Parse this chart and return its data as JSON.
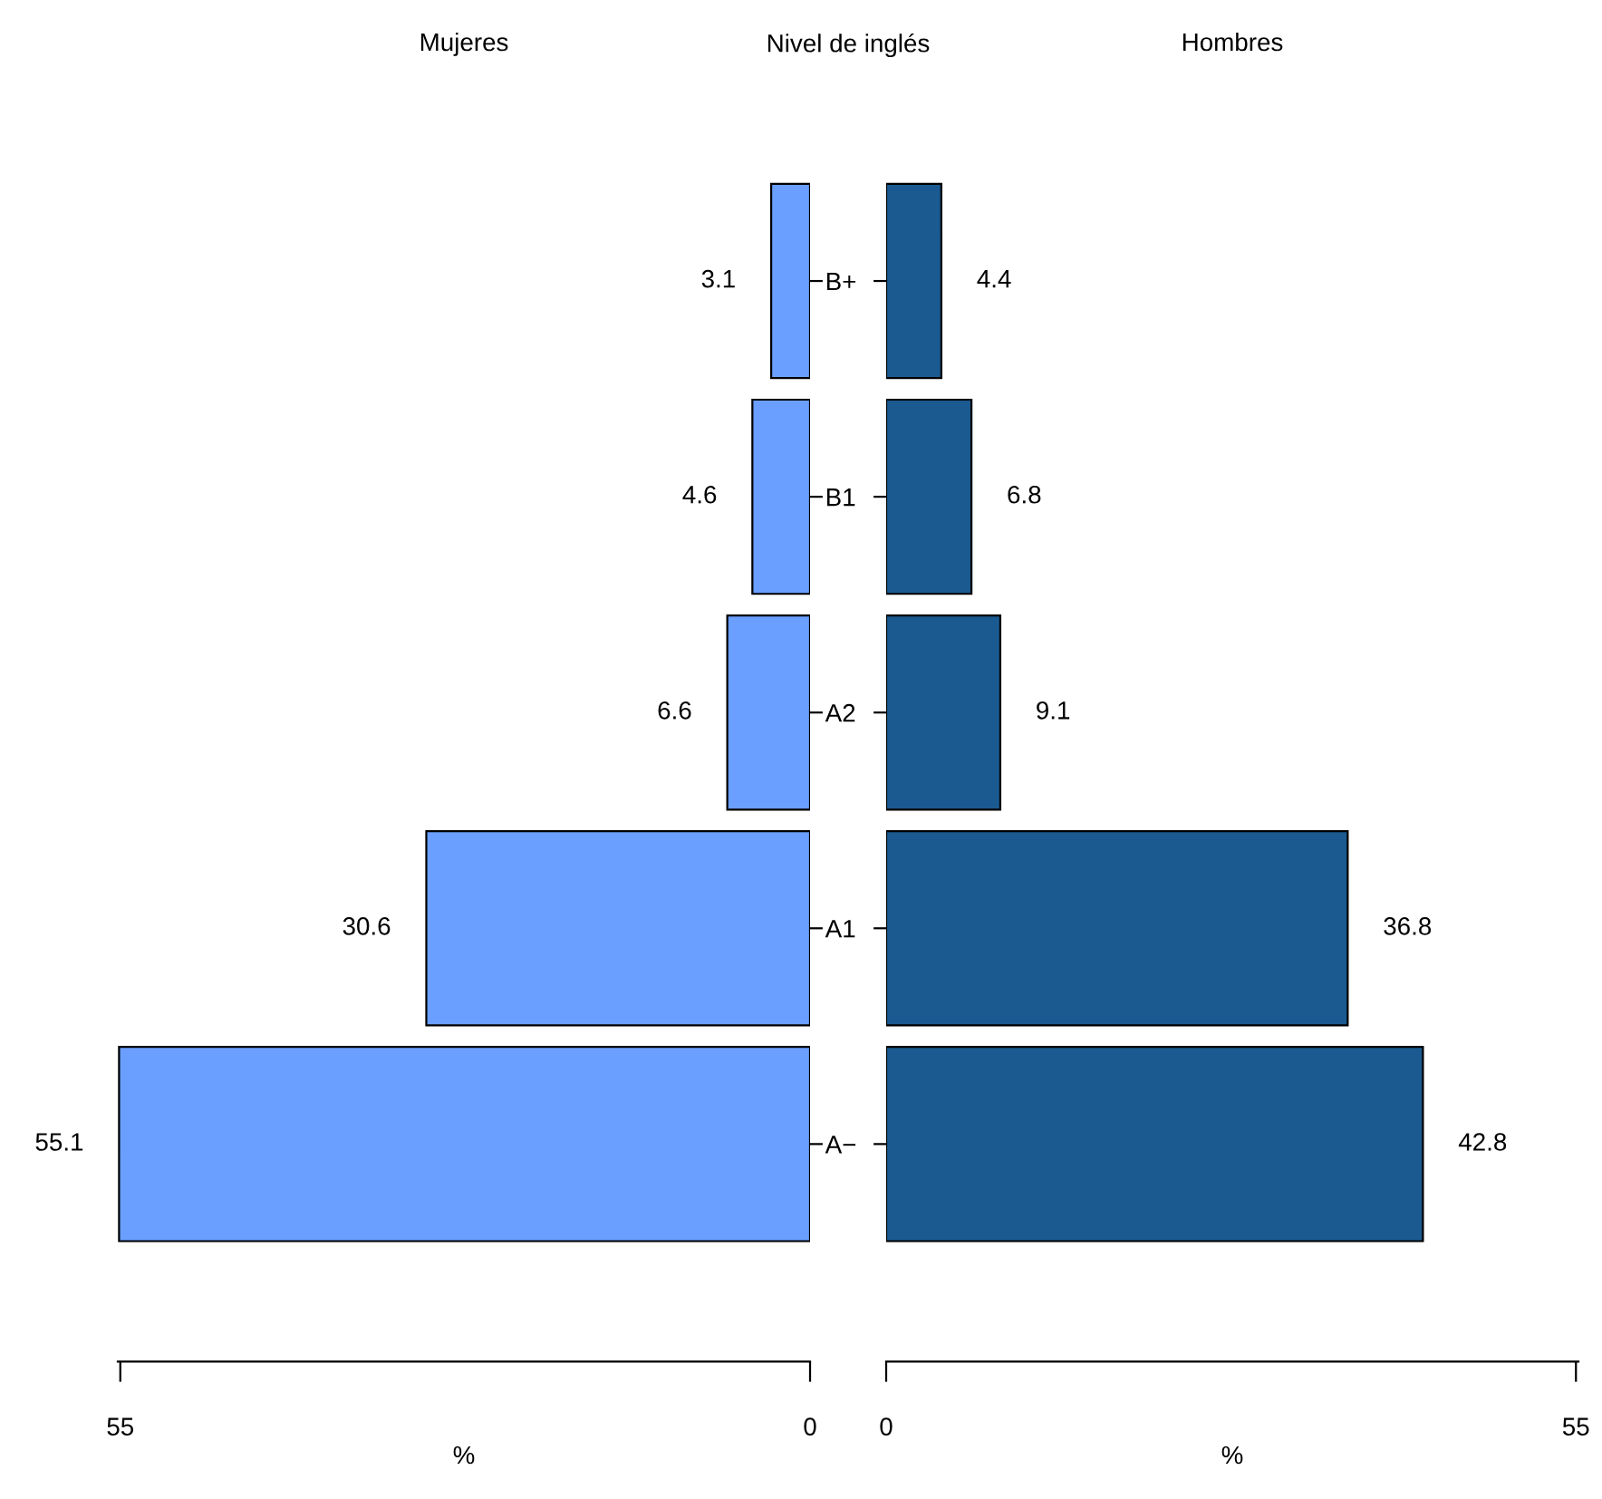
{
  "chart_data": [
    {
      "type": "bar",
      "orientation": "horizontal",
      "title": "Mujeres",
      "ylabel": "Nivel de inglés",
      "xlabel": "%",
      "categories": [
        "B+",
        "B1",
        "A2",
        "A1",
        "A−"
      ],
      "values": [
        3.1,
        4.6,
        6.6,
        30.6,
        55.1
      ],
      "color": "#6a9fff",
      "xlim": [
        55.2,
        0
      ],
      "xticks": [
        55,
        0
      ],
      "data_labels": true
    },
    {
      "type": "bar",
      "orientation": "horizontal",
      "title": "Hombres",
      "xlabel": "%",
      "categories": [
        "B+",
        "B1",
        "A2",
        "A1",
        "A−"
      ],
      "values": [
        4.4,
        6.8,
        9.1,
        36.8,
        42.8
      ],
      "color": "#1a5a90",
      "xlim": [
        0,
        55.2
      ],
      "xticks": [
        0,
        55
      ],
      "data_labels": true,
      "tick_labels": "x"
    }
  ]
}
